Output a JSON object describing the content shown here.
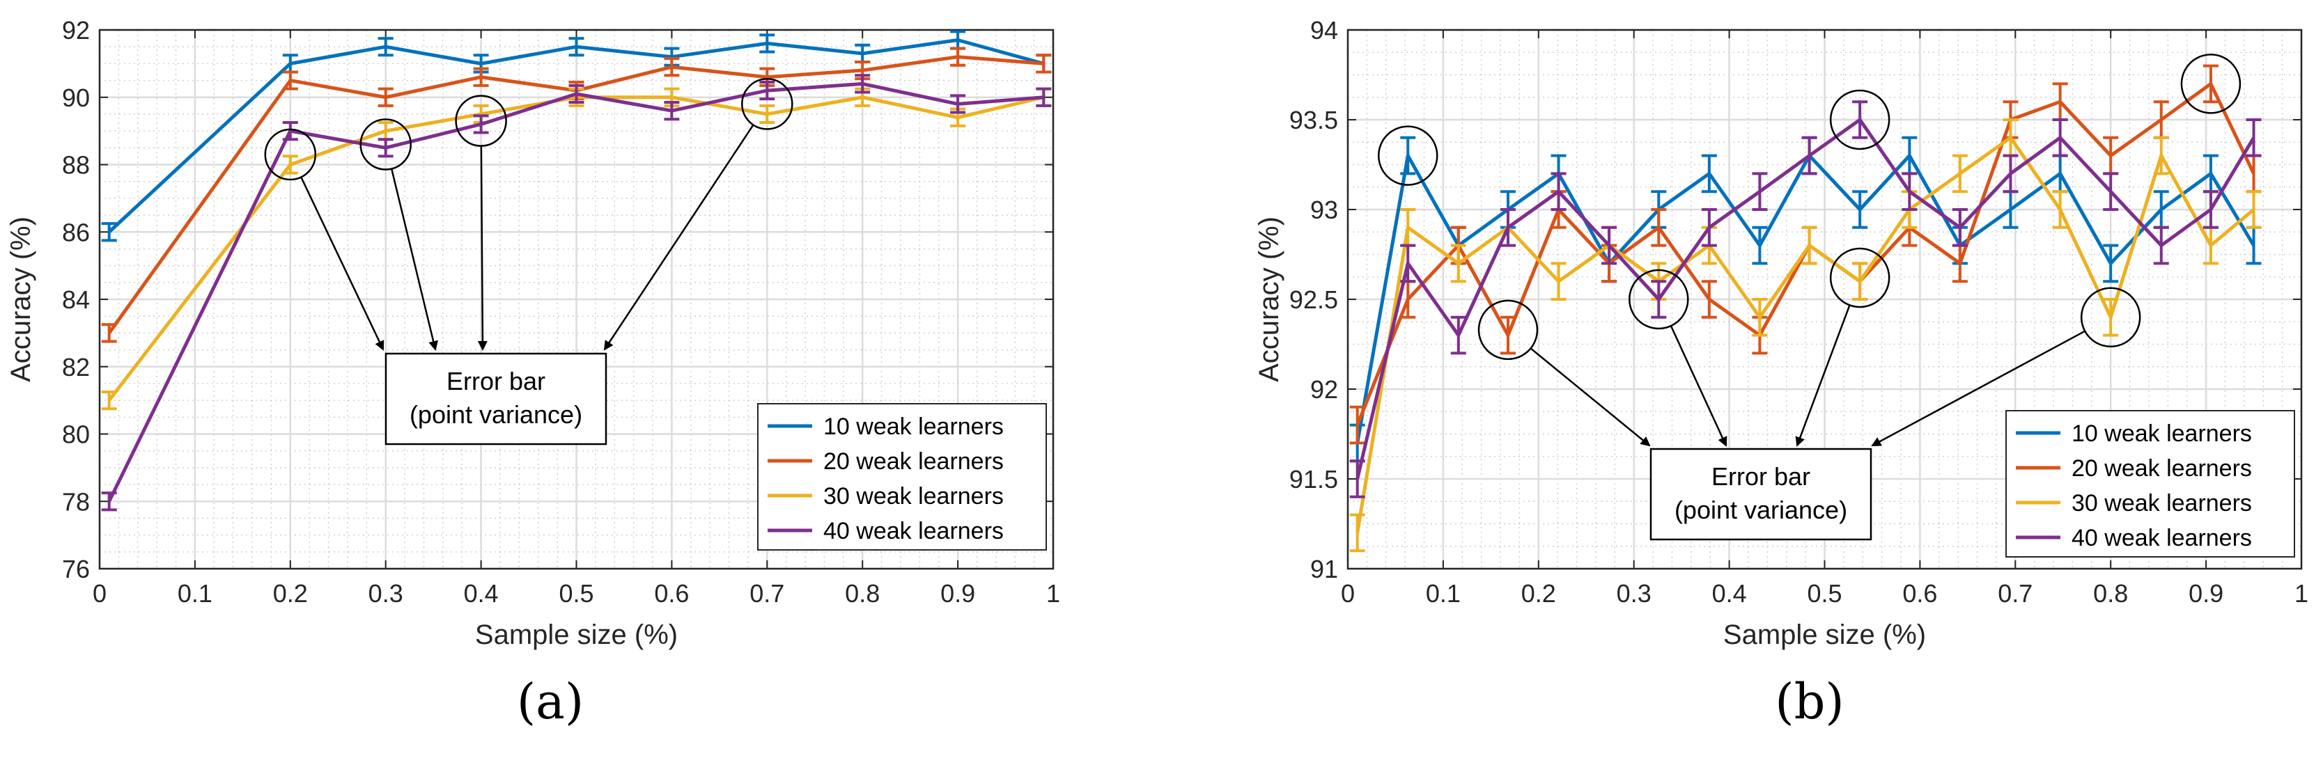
{
  "chart_data": [
    {
      "type": "line",
      "panel_label": "(a)",
      "xlabel": "Sample size (%)",
      "ylabel": "Accuracy (%)",
      "xlim": [
        0,
        1
      ],
      "ylim": [
        76,
        92
      ],
      "xticks": [
        0,
        0.1,
        0.2,
        0.3,
        0.4,
        0.5,
        0.6,
        0.7,
        0.8,
        0.9,
        1
      ],
      "xtick_labels": [
        "0",
        "0.1",
        "0.2",
        "0.3",
        "0.4",
        "0.5",
        "0.6",
        "0.7",
        "0.8",
        "0.9",
        "1"
      ],
      "yticks": [
        76,
        78,
        80,
        82,
        84,
        86,
        88,
        90,
        92
      ],
      "ytick_labels": [
        "76",
        "78",
        "80",
        "82",
        "84",
        "86",
        "88",
        "90",
        "92"
      ],
      "grid": true,
      "legend_position": "bottom-right",
      "x": [
        0.01,
        0.2,
        0.3,
        0.4,
        0.5,
        0.6,
        0.7,
        0.8,
        0.9,
        0.99
      ],
      "series": [
        {
          "name": "10 weak learners",
          "color": "#0072BD",
          "values": [
            86.0,
            91.0,
            91.5,
            91.0,
            91.5,
            91.2,
            91.6,
            91.3,
            91.7,
            91.0
          ],
          "err": 0.25
        },
        {
          "name": "20 weak learners",
          "color": "#D95319",
          "values": [
            83.0,
            90.5,
            90.0,
            90.6,
            90.2,
            90.9,
            90.6,
            90.8,
            91.2,
            91.0
          ],
          "err": 0.25
        },
        {
          "name": "30 weak learners",
          "color": "#EDB120",
          "values": [
            81.0,
            88.0,
            89.0,
            89.5,
            90.0,
            90.0,
            89.5,
            90.0,
            89.4,
            90.0
          ],
          "err": 0.25
        },
        {
          "name": "40 weak learners",
          "color": "#7E2F8E",
          "values": [
            78.0,
            89.0,
            88.5,
            89.2,
            90.1,
            89.6,
            90.2,
            90.4,
            89.8,
            90.0
          ],
          "err": 0.25
        }
      ],
      "annotation": {
        "line1": "Error bar",
        "line2": "(point variance)"
      },
      "circles": [
        [
          0.2,
          88.3
        ],
        [
          0.3,
          88.6
        ],
        [
          0.4,
          89.3
        ],
        [
          0.7,
          89.8
        ]
      ]
    },
    {
      "type": "line",
      "panel_label": "(b)",
      "xlabel": "Sample size (%)",
      "ylabel": "Accuracy (%)",
      "xlim": [
        0,
        1
      ],
      "ylim": [
        91,
        94
      ],
      "xticks": [
        0,
        0.1,
        0.2,
        0.3,
        0.4,
        0.5,
        0.6,
        0.7,
        0.8,
        0.9,
        1
      ],
      "xtick_labels": [
        "0",
        "0.1",
        "0.2",
        "0.3",
        "0.4",
        "0.5",
        "0.6",
        "0.7",
        "0.8",
        "0.9",
        "1"
      ],
      "yticks": [
        91,
        91.5,
        92,
        92.5,
        93,
        93.5,
        94
      ],
      "ytick_labels": [
        "91",
        "91.5",
        "92",
        "92.5",
        "93",
        "93.5",
        "94"
      ],
      "grid": true,
      "legend_position": "bottom-right",
      "x": [
        0.01,
        0.063,
        0.116,
        0.168,
        0.221,
        0.274,
        0.326,
        0.379,
        0.432,
        0.484,
        0.537,
        0.589,
        0.642,
        0.695,
        0.747,
        0.8,
        0.853,
        0.905,
        0.95
      ],
      "series": [
        {
          "name": "10 weak learners",
          "color": "#0072BD",
          "values": [
            91.7,
            93.3,
            92.8,
            93.0,
            93.2,
            92.7,
            93.0,
            93.2,
            92.8,
            93.3,
            93.0,
            93.3,
            92.8,
            93.0,
            93.2,
            92.7,
            93.0,
            93.2,
            92.8
          ],
          "err": 0.1
        },
        {
          "name": "20 weak learners",
          "color": "#D95319",
          "values": [
            91.8,
            92.5,
            92.8,
            92.3,
            93.0,
            92.7,
            92.9,
            92.5,
            92.3,
            92.8,
            92.6,
            92.9,
            92.7,
            93.5,
            93.6,
            93.3,
            93.5,
            93.7,
            93.2
          ],
          "err": 0.1
        },
        {
          "name": "30 weak learners",
          "color": "#EDB120",
          "values": [
            91.2,
            92.9,
            92.7,
            92.9,
            92.6,
            92.8,
            92.6,
            92.8,
            92.4,
            92.8,
            92.6,
            93.0,
            93.2,
            93.4,
            93.0,
            92.4,
            93.3,
            92.8,
            93.0
          ],
          "err": 0.1
        },
        {
          "name": "40 weak learners",
          "color": "#7E2F8E",
          "values": [
            91.5,
            92.7,
            92.3,
            92.9,
            93.1,
            92.8,
            92.5,
            92.9,
            93.1,
            93.3,
            93.5,
            93.1,
            92.9,
            93.2,
            93.4,
            93.1,
            92.8,
            93.0,
            93.4
          ],
          "err": 0.1
        }
      ],
      "annotation": {
        "line1": "Error bar",
        "line2": "(point variance)"
      },
      "circles": [
        [
          0.063,
          93.3
        ],
        [
          0.168,
          92.33
        ],
        [
          0.326,
          92.5
        ],
        [
          0.537,
          93.5
        ],
        [
          0.537,
          92.62
        ],
        [
          0.8,
          92.4
        ],
        [
          0.905,
          93.7
        ]
      ]
    }
  ]
}
